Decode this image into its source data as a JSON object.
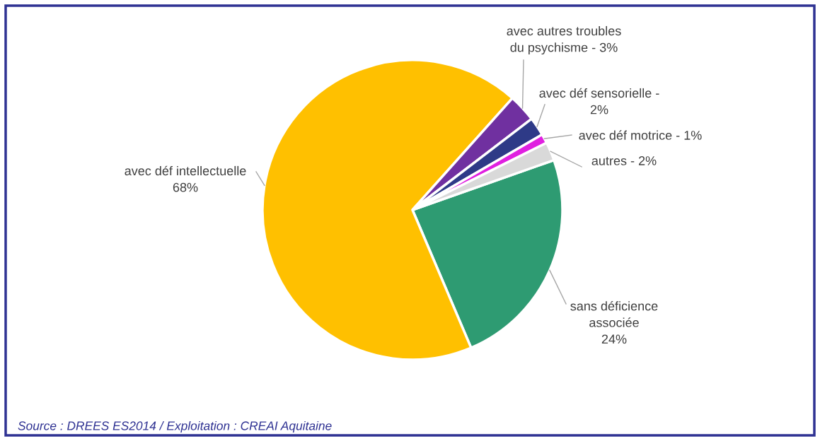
{
  "chart_data": {
    "type": "pie",
    "categories": [
      "sans déficience\nassociée",
      "avec déf intellectuelle",
      "avec autres troubles\ndu psychisme -",
      "avec déf sensorielle -",
      "avec déf motrice -",
      "autres -"
    ],
    "values": [
      24,
      68,
      3,
      2,
      1,
      2
    ],
    "value_labels": [
      "24%",
      "68%",
      "3%",
      "2%",
      "1%",
      "2%"
    ],
    "colors": [
      "#2e9b72",
      "#ffc000",
      "#7030a0",
      "#2e3a87",
      "#e020e0",
      "#d9d9d9"
    ],
    "data_labels": true,
    "legend": false,
    "annotations": [
      "Source : DREES ES2014 / Exploitation : CREAI Aquitaine"
    ]
  }
}
